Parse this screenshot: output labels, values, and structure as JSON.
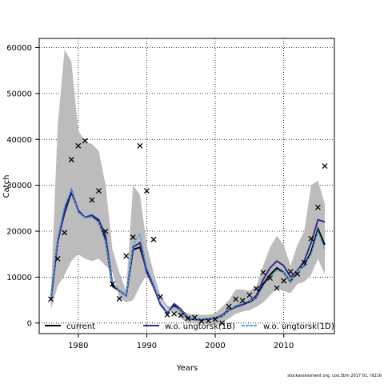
{
  "chart_data": {
    "type": "line",
    "xlabel": "Years",
    "ylabel": "Catch",
    "xlim": [
      1974.3,
      2017.4
    ],
    "ylim": [
      -2300,
      62000
    ],
    "x_ticks": [
      1980,
      1990,
      2000,
      2010
    ],
    "y_ticks": [
      0,
      10000,
      20000,
      30000,
      40000,
      50000,
      60000
    ],
    "grid": "dotted",
    "legend_position": "bottom",
    "years": [
      1976,
      1977,
      1978,
      1979,
      1980,
      1981,
      1982,
      1983,
      1984,
      1985,
      1986,
      1987,
      1988,
      1989,
      1990,
      1991,
      1992,
      1993,
      1994,
      1995,
      1996,
      1997,
      1998,
      1999,
      2000,
      2001,
      2002,
      2003,
      2004,
      2005,
      2006,
      2007,
      2008,
      2009,
      2010,
      2011,
      2012,
      2013,
      2014,
      2015,
      2016
    ],
    "band": {
      "upper": [
        6000,
        43000,
        59500,
        57000,
        42000,
        39500,
        39000,
        37500,
        30000,
        16000,
        11000,
        7000,
        30000,
        28000,
        17000,
        11000,
        6000,
        3800,
        3300,
        2900,
        2000,
        1900,
        1800,
        1800,
        2200,
        3500,
        5000,
        7300,
        7300,
        7000,
        8000,
        12500,
        16500,
        19000,
        17000,
        12500,
        17000,
        20000,
        30000,
        31000,
        26000
      ],
      "lower": [
        3000,
        8000,
        10500,
        13500,
        15000,
        14000,
        13500,
        14000,
        12500,
        11000,
        5500,
        4500,
        5000,
        8000,
        10500,
        7000,
        5000,
        3000,
        2500,
        1000,
        0,
        200,
        0,
        -300,
        -300,
        0,
        1000,
        2000,
        2500,
        2800,
        3500,
        4500,
        6000,
        7500,
        7000,
        6500,
        8500,
        9000,
        10500,
        14000,
        10500
      ]
    },
    "series": [
      {
        "name": "current",
        "color": "#000000",
        "dash": "solid",
        "values": [
          5200,
          18000,
          24000,
          28500,
          24500,
          23000,
          23500,
          22000,
          18000,
          8000,
          7000,
          6000,
          16000,
          16500,
          11500,
          8000,
          4200,
          2200,
          3800,
          2700,
          1000,
          800,
          700,
          900,
          1000,
          1500,
          2800,
          3500,
          4000,
          4600,
          5500,
          8500,
          10500,
          12000,
          11000,
          9000,
          11500,
          12500,
          15500,
          20500,
          17000
        ]
      },
      {
        "name": "w.o. ungtorsk(1B)",
        "color": "#3b2a8c",
        "dash": "solid",
        "values": [
          5000,
          17500,
          24500,
          29000,
          24500,
          23000,
          23500,
          22500,
          19000,
          8500,
          7000,
          6000,
          16500,
          17500,
          11000,
          8000,
          4000,
          2200,
          4200,
          3000,
          1200,
          800,
          700,
          900,
          1100,
          1700,
          3000,
          3500,
          4000,
          4800,
          6000,
          9500,
          12000,
          13500,
          12500,
          10000,
          11500,
          13500,
          17500,
          22500,
          22000
        ]
      },
      {
        "name": "w.o. ungtorsk(1D)",
        "color": "#4aa3df",
        "dash": "dashed",
        "values": [
          5500,
          18500,
          25500,
          29000,
          24000,
          23000,
          23000,
          22000,
          17500,
          8500,
          7000,
          6000,
          17000,
          19500,
          12000,
          8500,
          4500,
          2500,
          3500,
          2800,
          1000,
          900,
          800,
          1000,
          1000,
          1500,
          2800,
          3800,
          4500,
          4800,
          5500,
          8000,
          10000,
          11500,
          11000,
          9000,
          11500,
          12500,
          15000,
          20000,
          16000
        ]
      }
    ],
    "observations": [
      {
        "x": 1976,
        "y": 5200
      },
      {
        "x": 1977,
        "y": 14000
      },
      {
        "x": 1978,
        "y": 19700
      },
      {
        "x": 1979,
        "y": 35600
      },
      {
        "x": 1980,
        "y": 38600
      },
      {
        "x": 1981,
        "y": 39700
      },
      {
        "x": 1982,
        "y": 26800
      },
      {
        "x": 1983,
        "y": 28800
      },
      {
        "x": 1984,
        "y": 20000
      },
      {
        "x": 1985,
        "y": 8500
      },
      {
        "x": 1986,
        "y": 5300
      },
      {
        "x": 1987,
        "y": 14600
      },
      {
        "x": 1988,
        "y": 18700
      },
      {
        "x": 1989,
        "y": 38600
      },
      {
        "x": 1990,
        "y": 28800
      },
      {
        "x": 1991,
        "y": 18200
      },
      {
        "x": 1992,
        "y": 5700
      },
      {
        "x": 1993,
        "y": 1800
      },
      {
        "x": 1994,
        "y": 2000
      },
      {
        "x": 1995,
        "y": 1700
      },
      {
        "x": 1996,
        "y": 1000
      },
      {
        "x": 1997,
        "y": 1200
      },
      {
        "x": 1998,
        "y": 400
      },
      {
        "x": 1999,
        "y": 500
      },
      {
        "x": 2000,
        "y": 800
      },
      {
        "x": 2001,
        "y": 0
      },
      {
        "x": 2002,
        "y": 3600
      },
      {
        "x": 2003,
        "y": 5200
      },
      {
        "x": 2004,
        "y": 4900
      },
      {
        "x": 2005,
        "y": 6100
      },
      {
        "x": 2006,
        "y": 7500
      },
      {
        "x": 2007,
        "y": 11000
      },
      {
        "x": 2008,
        "y": 9800
      },
      {
        "x": 2009,
        "y": 7600
      },
      {
        "x": 2010,
        "y": 9200
      },
      {
        "x": 2011,
        "y": 11200
      },
      {
        "x": 2012,
        "y": 10700
      },
      {
        "x": 2013,
        "y": 13200
      },
      {
        "x": 2014,
        "y": 18400
      },
      {
        "x": 2015,
        "y": 25200
      },
      {
        "x": 2016,
        "y": 34200
      }
    ]
  },
  "footer": "stockassessment.org, cod.3bm  2017 01, r9216"
}
